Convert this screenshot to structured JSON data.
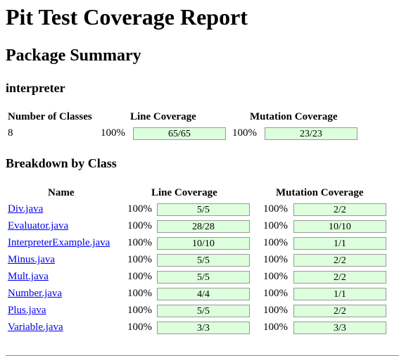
{
  "title": "Pit Test Coverage Report",
  "package_summary": {
    "heading": "Package Summary",
    "package_name": "interpreter",
    "headers": {
      "classes": "Number of Classes",
      "line": "Line Coverage",
      "mutation": "Mutation Coverage"
    },
    "num_classes": "8",
    "line_percent": "100%",
    "line_ratio": "65/65",
    "mutation_percent": "100%",
    "mutation_ratio": "23/23"
  },
  "breakdown": {
    "heading": "Breakdown by Class",
    "headers": {
      "name": "Name",
      "line": "Line Coverage",
      "mutation": "Mutation Coverage"
    },
    "rows": [
      {
        "name": "Div.java",
        "line_percent": "100%",
        "line_ratio": "5/5",
        "mutation_percent": "100%",
        "mutation_ratio": "2/2"
      },
      {
        "name": "Evaluator.java",
        "line_percent": "100%",
        "line_ratio": "28/28",
        "mutation_percent": "100%",
        "mutation_ratio": "10/10"
      },
      {
        "name": "InterpreterExample.java",
        "line_percent": "100%",
        "line_ratio": "10/10",
        "mutation_percent": "100%",
        "mutation_ratio": "1/1"
      },
      {
        "name": "Minus.java",
        "line_percent": "100%",
        "line_ratio": "5/5",
        "mutation_percent": "100%",
        "mutation_ratio": "2/2"
      },
      {
        "name": "Mult.java",
        "line_percent": "100%",
        "line_ratio": "5/5",
        "mutation_percent": "100%",
        "mutation_ratio": "2/2"
      },
      {
        "name": "Number.java",
        "line_percent": "100%",
        "line_ratio": "4/4",
        "mutation_percent": "100%",
        "mutation_ratio": "1/1"
      },
      {
        "name": "Plus.java",
        "line_percent": "100%",
        "line_ratio": "5/5",
        "mutation_percent": "100%",
        "mutation_ratio": "2/2"
      },
      {
        "name": "Variable.java",
        "line_percent": "100%",
        "line_ratio": "3/3",
        "mutation_percent": "100%",
        "mutation_ratio": "3/3"
      }
    ]
  },
  "colors": {
    "coverage_bar": "#ddffdd",
    "link": "#0000ee"
  }
}
